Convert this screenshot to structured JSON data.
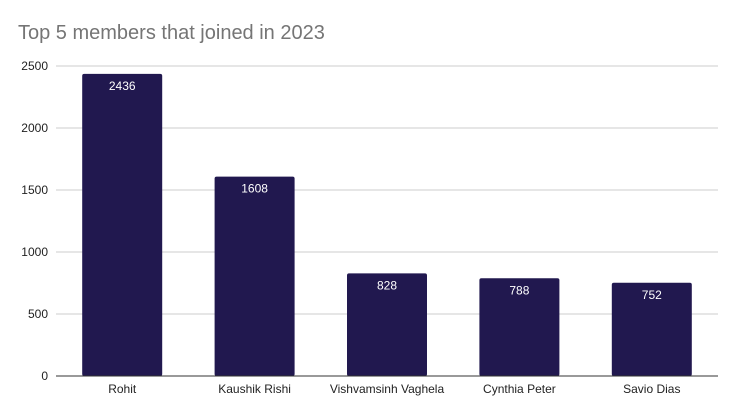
{
  "chart_data": {
    "type": "bar",
    "title": "Top 5 members that joined in 2023",
    "xlabel": "",
    "ylabel": "",
    "categories": [
      "Rohit",
      "Kaushik Rishi",
      "Vishvamsinh Vaghela",
      "Cynthia Peter",
      "Savio Dias"
    ],
    "values": [
      2436,
      1608,
      828,
      788,
      752
    ],
    "data_labels": [
      "2436",
      "1608",
      "828",
      "788",
      "752"
    ],
    "ylim": [
      0,
      2500
    ],
    "yticks": [
      0,
      500,
      1000,
      1500,
      2000,
      2500
    ],
    "ytick_labels": [
      "0",
      "500",
      "1000",
      "1500",
      "2000",
      "2500"
    ],
    "grid": true,
    "legend": "none",
    "bar_color": "#21184f",
    "grid_color": "#cccccc",
    "axis_color": "#333333"
  }
}
